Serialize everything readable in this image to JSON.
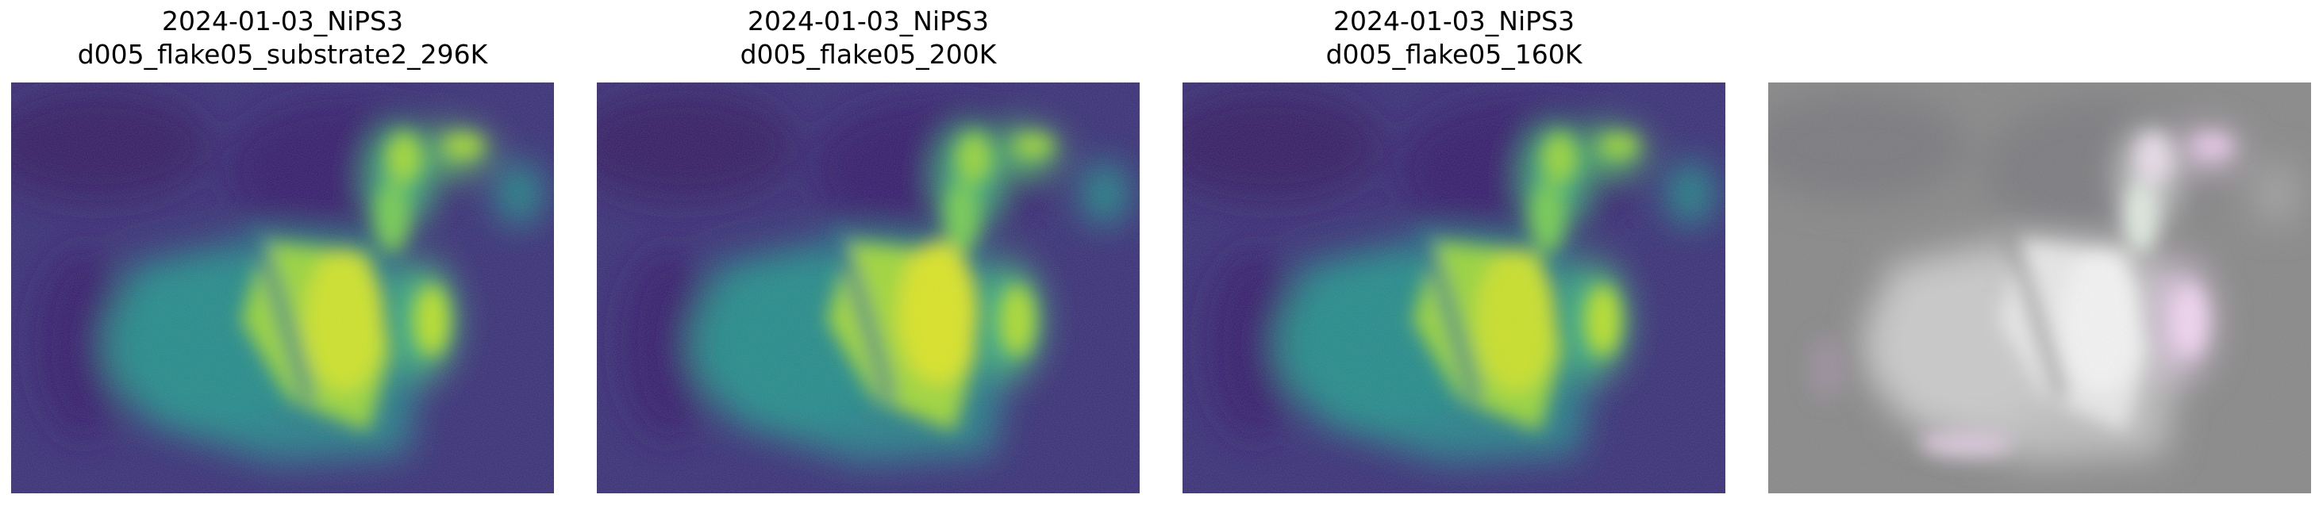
{
  "figure": {
    "panels": [
      {
        "title_line1": "2024-01-03_NiPS3",
        "title_line2": "d005_flake05_substrate2_296K",
        "colormap": "viridis"
      },
      {
        "title_line1": "2024-01-03_NiPS3",
        "title_line2": "d005_flake05_200K",
        "colormap": "viridis"
      },
      {
        "title_line1": "2024-01-03_NiPS3",
        "title_line2": "d005_flake05_160K",
        "colormap": "viridis"
      },
      {
        "title_line1": "",
        "title_line2": "",
        "colormap": "rgb-composite"
      }
    ]
  },
  "colors": {
    "viridis_low": "#3b1d6e",
    "viridis_mid": "#2a8b8c",
    "viridis_high": "#e8e524",
    "composite_background": "#8a8a8a",
    "composite_bright": "#f2f2f2"
  }
}
